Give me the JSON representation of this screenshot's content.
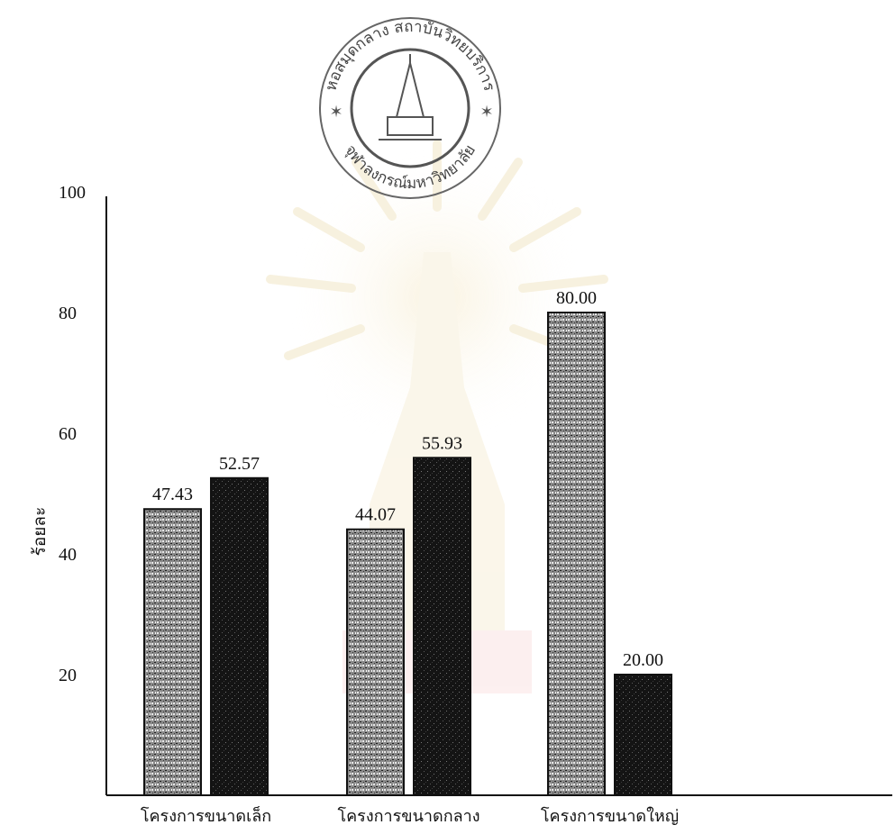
{
  "seal": {
    "text_top": "หอสมุดกลาง สถาบันวิทยบริการ",
    "text_bottom": "จุฬาลงกรณ์มหาวิทยาลัย"
  },
  "chart_data": {
    "type": "bar",
    "title": "",
    "xlabel": "",
    "ylabel": "ร้อยละ",
    "ylim": [
      0,
      100
    ],
    "yticks": [
      20,
      40,
      60,
      80,
      100
    ],
    "grid": false,
    "categories": [
      "โครงการขนาดเล็ก",
      "โครงการขนาดกลาง",
      "โครงการขนาดใหญ่"
    ],
    "series": [
      {
        "values": [
          47.43,
          44.07,
          80.0
        ],
        "labels": [
          "47.43",
          "44.07",
          "80.00"
        ],
        "pattern": "light-stipple"
      },
      {
        "values": [
          52.57,
          55.93,
          20.0
        ],
        "labels": [
          "52.57",
          "55.93",
          "20.00"
        ],
        "pattern": "dark-stipple"
      }
    ]
  }
}
